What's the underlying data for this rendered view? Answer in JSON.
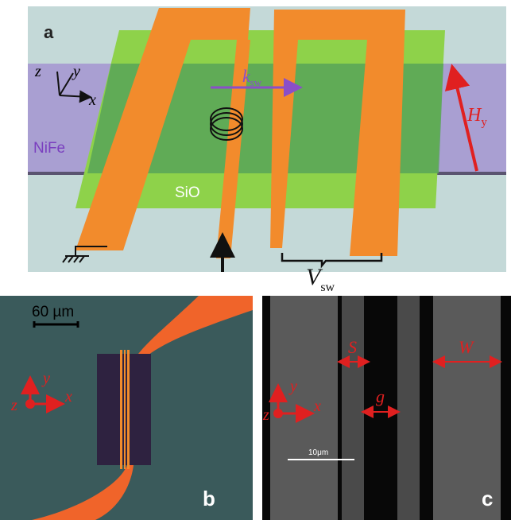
{
  "panel_a": {
    "label": "a",
    "axis_z": "z",
    "axis_y": "y",
    "axis_x": "x",
    "nife": "NiFe",
    "sio": "SiO",
    "wave_vector": {
      "symbol": "k",
      "subscript": "sw"
    },
    "field": {
      "symbol": "H",
      "subscript": "y"
    },
    "voltage": {
      "symbol": "V",
      "subscript": "sw"
    }
  },
  "panel_b": {
    "label": "b",
    "scale_bar": "60 µm",
    "axis_y": "y",
    "axis_x": "x",
    "axis_z": "z"
  },
  "panel_c": {
    "label": "c",
    "spacing": "S",
    "gap": "g",
    "width": "W",
    "axis_y": "y",
    "axis_x": "x",
    "axis_z": "z",
    "scale_bar": "10μm"
  }
}
